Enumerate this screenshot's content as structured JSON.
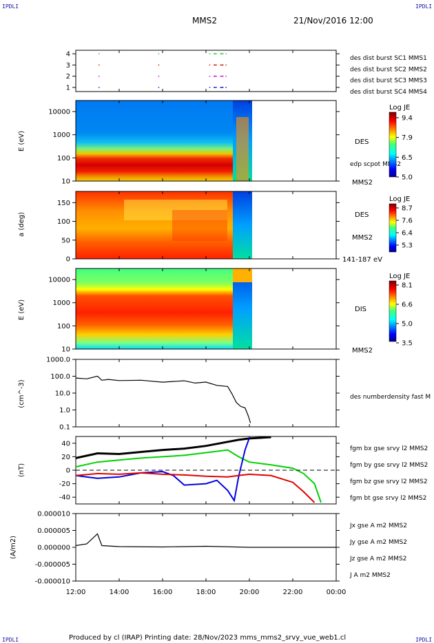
{
  "header": {
    "corner_left": "IPDLI",
    "corner_right": "IPDLI",
    "spacecraft": "MMS2",
    "datetime": "21/Nov/2016 12:00",
    "corner_bottom_left": "IPDLI",
    "corner_bottom_right": "IPDLI"
  },
  "footer": {
    "text": "Produced by cl (IRAP)   Printing date: 28/Nov/2023   mms_mms2_srvy_vue_web1.cl"
  },
  "colors": {
    "mms1": "#1010c8",
    "mms2": "#c800c8",
    "mms3": "#d00000",
    "mms4": "#10c810",
    "bx": "#e00000",
    "by": "#00d000",
    "bz": "#0000e0",
    "bt": "#000000"
  },
  "chart_data": [
    {
      "id": "burst",
      "type": "scatter",
      "yticks": [
        "1",
        "2",
        "3",
        "4"
      ],
      "legend": [
        {
          "label": "des dist burst SC1 MMS1",
          "color": "#1010c8"
        },
        {
          "label": "des dist burst SC2 MMS2",
          "color": "#c800c8"
        },
        {
          "label": "des dist burst SC3 MMS3",
          "color": "#d00000"
        },
        {
          "label": "des dist burst SC4 MMS4",
          "color": "#10c810"
        }
      ],
      "intervals_hours": [
        [
          13.05,
          13.08
        ],
        [
          15.8,
          15.82
        ],
        [
          18.15,
          18.17
        ],
        [
          18.35,
          18.5
        ],
        [
          18.65,
          18.95
        ]
      ],
      "levels": [
        1,
        2,
        3,
        4
      ]
    },
    {
      "id": "des-energy",
      "type": "heatmap",
      "ylabel": "E (eV)",
      "yscale": "log",
      "ylim": [
        10,
        30000
      ],
      "yticks": [
        "10",
        "100",
        "1000",
        "10000"
      ],
      "labels": [
        "DES",
        "edp scpot MMS2",
        "MMS2"
      ],
      "colorbar": {
        "title": "Log JE",
        "ticks": [
          "9.4",
          "7.9",
          "6.5",
          "5.0"
        ],
        "min": 5.0,
        "max": 9.4
      },
      "data_end_hours": 20.05
    },
    {
      "id": "des-pitch",
      "type": "heatmap",
      "ylabel": "a (deg)",
      "ylim": [
        0,
        180
      ],
      "yticks": [
        "0",
        "50",
        "100",
        "150"
      ],
      "labels": [
        "DES",
        "MMS2",
        "141-187 eV"
      ],
      "colorbar": {
        "title": "Log JE",
        "ticks": [
          "8.7",
          "7.6",
          "6.4",
          "5.3"
        ],
        "min": 5.3,
        "max": 8.7
      },
      "data_end_hours": 20.05
    },
    {
      "id": "dis-energy",
      "type": "heatmap",
      "ylabel": "E (eV)",
      "yscale": "log",
      "ylim": [
        10,
        30000
      ],
      "yticks": [
        "10",
        "100",
        "1000",
        "10000"
      ],
      "labels": [
        "DIS",
        "MMS2"
      ],
      "colorbar": {
        "title": "Log JE",
        "ticks": [
          "8.1",
          "6.6",
          "5.0",
          "3.5"
        ],
        "min": 3.5,
        "max": 8.1
      },
      "data_end_hours": 20.05
    },
    {
      "id": "density",
      "type": "line",
      "ylabel": "(cm^-3)",
      "yscale": "log",
      "ylim": [
        0.1,
        1000
      ],
      "yticks": [
        "0.1",
        "1.0",
        "10.0",
        "100.0",
        "1000.0"
      ],
      "legend": [
        {
          "label": "des numberdensity fast M",
          "color": "#000000"
        }
      ],
      "x": [
        12.0,
        12.5,
        13.0,
        13.2,
        13.5,
        14.0,
        15.0,
        16.0,
        17.0,
        17.5,
        18.0,
        18.5,
        19.0,
        19.2,
        19.4,
        19.6,
        19.8,
        19.95,
        20.05
      ],
      "y": [
        70,
        78,
        90,
        65,
        58,
        62,
        52,
        50,
        48,
        44,
        40,
        32,
        22,
        10,
        2.5,
        1.8,
        1.2,
        0.5,
        0.15
      ]
    },
    {
      "id": "fgm",
      "type": "line",
      "ylabel": "(nT)",
      "ylim": [
        -50,
        50
      ],
      "yticks": [
        "-40",
        "-20",
        "0",
        "20",
        "40"
      ],
      "legend": [
        {
          "label": "fgm bx gse srvy l2 MMS2",
          "color": "#e00000"
        },
        {
          "label": "fgm by gse srvy l2 MMS2",
          "color": "#00d000"
        },
        {
          "label": "fgm bz gse srvy l2 MMS2",
          "color": "#0000e0"
        },
        {
          "label": "fgm bt gse srvy l2 MMS2",
          "color": "#000000"
        }
      ],
      "series": [
        {
          "name": "fgm bt gse srvy l2 MMS2",
          "color": "#000000",
          "x": [
            12.0,
            13.0,
            14.0,
            15.0,
            16.0,
            17.0,
            18.0,
            19.0,
            19.5,
            20.0,
            21.0
          ],
          "y": [
            18,
            25,
            24,
            27,
            30,
            32,
            36,
            42,
            45,
            47,
            49
          ]
        },
        {
          "name": "fgm by gse srvy l2 MMS2",
          "color": "#00d000",
          "x": [
            12.0,
            13.0,
            14.0,
            15.0,
            16.0,
            17.0,
            18.0,
            19.0,
            19.5,
            20.0,
            21.0,
            22.0,
            22.5,
            23.0,
            23.3
          ],
          "y": [
            5,
            12,
            15,
            18,
            20,
            22,
            26,
            30,
            20,
            12,
            8,
            3,
            -5,
            -20,
            -48
          ]
        },
        {
          "name": "fgm bz gse srvy l2 MMS2",
          "color": "#0000e0",
          "x": [
            12.0,
            13.0,
            14.0,
            15.0,
            16.0,
            16.5,
            17.0,
            18.0,
            18.5,
            19.0,
            19.3,
            19.5,
            19.8,
            20.0
          ],
          "y": [
            -8,
            -12,
            -10,
            -4,
            -2,
            -8,
            -22,
            -20,
            -15,
            -30,
            -45,
            -10,
            30,
            48
          ]
        },
        {
          "name": "fgm bx gse srvy l2 MMS2",
          "color": "#e00000",
          "x": [
            12.0,
            13.0,
            14.0,
            15.0,
            16.0,
            17.0,
            18.0,
            19.0,
            19.5,
            20.0,
            21.0,
            22.0,
            22.5,
            23.0
          ],
          "y": [
            -8,
            -5,
            -6,
            -4,
            -6,
            -7,
            -9,
            -10,
            -8,
            -6,
            -8,
            -18,
            -32,
            -48
          ]
        }
      ]
    },
    {
      "id": "current",
      "type": "line",
      "ylabel": "(A/m2)",
      "ylim": [
        -1e-05,
        1e-05
      ],
      "yticks": [
        "-0.000010",
        "-0.000005",
        "0.000000",
        "0.000005",
        "0.000010"
      ],
      "legend": [
        {
          "label": "Jx gse A m2 MMS2",
          "color": "#e00000"
        },
        {
          "label": "Jy gse A m2 MMS2",
          "color": "#00d000"
        },
        {
          "label": "Jz gse A m2 MMS2",
          "color": "#0000e0"
        },
        {
          "label": "J A m2 MMS2",
          "color": "#000000"
        }
      ],
      "x": [
        12.0,
        12.5,
        13.0,
        13.2,
        14.0,
        16.0,
        18.0,
        20.0,
        24.0
      ],
      "y": [
        5e-07,
        1e-06,
        4e-06,
        5e-07,
        2e-07,
        1e-07,
        3e-07,
        0.0,
        0.0
      ]
    }
  ],
  "time_axis": {
    "range_hours": [
      12,
      24
    ],
    "ticks": [
      "12:00",
      "14:00",
      "16:00",
      "18:00",
      "20:00",
      "22:00",
      "00:00"
    ]
  }
}
